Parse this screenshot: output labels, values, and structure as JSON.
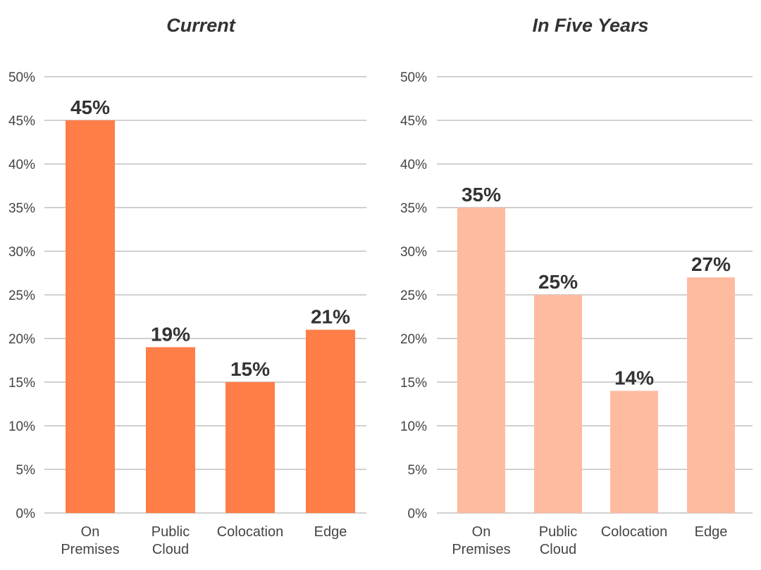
{
  "chart_data": [
    {
      "type": "bar",
      "title": "Current",
      "categories": [
        [
          "On",
          "Premises"
        ],
        [
          "Public",
          "Cloud"
        ],
        [
          "Colocation"
        ],
        [
          "Edge"
        ]
      ],
      "values": [
        45,
        19,
        15,
        21
      ],
      "data_labels": [
        "45%",
        "19%",
        "15%",
        "21%"
      ],
      "yticks": [
        "0%",
        "5%",
        "10%",
        "15%",
        "20%",
        "25%",
        "30%",
        "35%",
        "40%",
        "45%",
        "50%"
      ],
      "ylim": [
        0,
        50
      ],
      "grid": true,
      "color": "#FF7D47"
    },
    {
      "type": "bar",
      "title": "In Five Years",
      "categories": [
        [
          "On",
          "Premises"
        ],
        [
          "Public",
          "Cloud"
        ],
        [
          "Colocation"
        ],
        [
          "Edge"
        ]
      ],
      "values": [
        35,
        25,
        14,
        27
      ],
      "data_labels": [
        "35%",
        "25%",
        "14%",
        "27%"
      ],
      "yticks": [
        "0%",
        "5%",
        "10%",
        "15%",
        "20%",
        "25%",
        "30%",
        "35%",
        "40%",
        "45%",
        "50%"
      ],
      "ylim": [
        0,
        50
      ],
      "grid": true,
      "color": "#FFBBA0"
    }
  ]
}
